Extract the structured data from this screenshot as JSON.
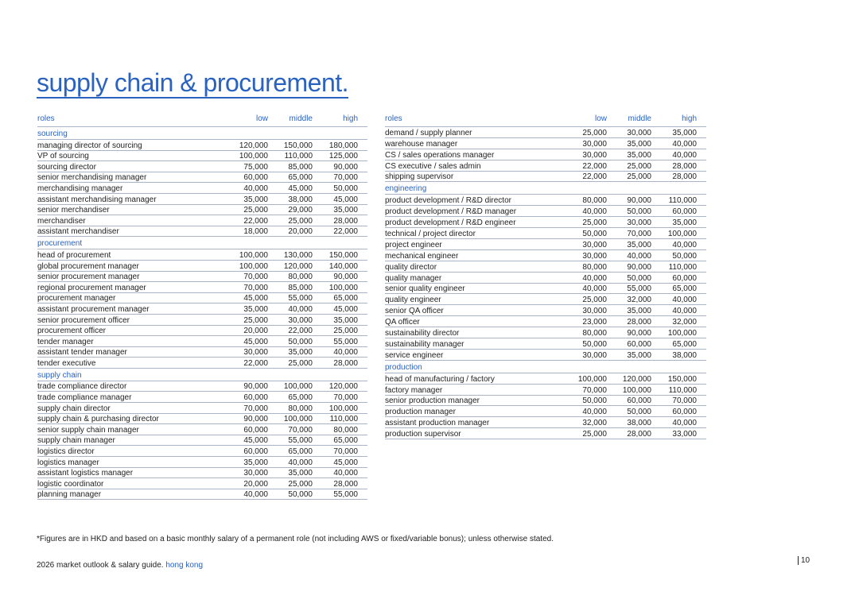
{
  "header": {
    "title": "supply chain & procurement."
  },
  "left_table": {
    "columns": [
      "roles",
      "low",
      "middle",
      "high"
    ],
    "sections": [
      {
        "label": "sourcing",
        "rows": [
          [
            "managing director of sourcing",
            "120,000",
            "150,000",
            "180,000"
          ],
          [
            "VP of sourcing",
            "100,000",
            "110,000",
            "125,000"
          ],
          [
            "sourcing director",
            "75,000",
            "85,000",
            "90,000"
          ],
          [
            "senior merchandising manager",
            "60,000",
            "65,000",
            "70,000"
          ],
          [
            "merchandising manager",
            "40,000",
            "45,000",
            "50,000"
          ],
          [
            "assistant merchandising manager",
            "35,000",
            "38,000",
            "45,000"
          ],
          [
            "senior merchandiser",
            "25,000",
            "29,000",
            "35,000"
          ],
          [
            "merchandiser",
            "22,000",
            "25,000",
            "28,000"
          ],
          [
            "assistant merchandiser",
            "18,000",
            "20,000",
            "22,000"
          ]
        ]
      },
      {
        "label": "procurement",
        "rows": [
          [
            "head of procurement",
            "100,000",
            "130,000",
            "150,000"
          ],
          [
            "global procurement manager",
            "100,000",
            "120,000",
            "140,000"
          ],
          [
            "senior procurement manager",
            "70,000",
            "80,000",
            "90,000"
          ],
          [
            "regional procurement manager",
            "70,000",
            "85,000",
            "100,000"
          ],
          [
            "procurement manager",
            "45,000",
            "55,000",
            "65,000"
          ],
          [
            "assistant procurement manager",
            "35,000",
            "40,000",
            "45,000"
          ],
          [
            "senior procurement officer",
            "25,000",
            "30,000",
            "35,000"
          ],
          [
            "procurement officer",
            "20,000",
            "22,000",
            "25,000"
          ],
          [
            "tender manager",
            "45,000",
            "50,000",
            "55,000"
          ],
          [
            "assistant tender manager",
            "30,000",
            "35,000",
            "40,000"
          ],
          [
            "tender executive",
            "22,000",
            "25,000",
            "28,000"
          ]
        ]
      },
      {
        "label": "supply chain",
        "rows": [
          [
            "trade compliance director",
            "90,000",
            "100,000",
            "120,000"
          ],
          [
            "trade compliance manager",
            "60,000",
            "65,000",
            "70,000"
          ],
          [
            "supply chain director",
            "70,000",
            "80,000",
            "100,000"
          ],
          [
            "supply chain & purchasing director",
            "90,000",
            "100,000",
            "110,000"
          ],
          [
            "senior supply chain manager",
            "60,000",
            "70,000",
            "80,000"
          ],
          [
            "supply chain manager",
            "45,000",
            "55,000",
            "65,000"
          ],
          [
            "logistics director",
            "60,000",
            "65,000",
            "70,000"
          ],
          [
            "logistics manager",
            "35,000",
            "40,000",
            "45,000"
          ],
          [
            "assistant logistics manager",
            "30,000",
            "35,000",
            "40,000"
          ],
          [
            "logistic coordinator",
            "20,000",
            "25,000",
            "28,000"
          ],
          [
            "planning manager",
            "40,000",
            "50,000",
            "55,000"
          ]
        ]
      }
    ]
  },
  "right_table": {
    "columns": [
      "roles",
      "low",
      "middle",
      "high"
    ],
    "sections": [
      {
        "rows": [
          [
            "demand / supply planner",
            "25,000",
            "30,000",
            "35,000"
          ],
          [
            "warehouse manager",
            "30,000",
            "35,000",
            "40,000"
          ],
          [
            "CS / sales operations manager",
            "30,000",
            "35,000",
            "40,000"
          ],
          [
            "CS executive / sales admin",
            "22,000",
            "25,000",
            "28,000"
          ],
          [
            "shipping supervisor",
            "22,000",
            "25,000",
            "28,000"
          ]
        ]
      },
      {
        "label": "engineering",
        "rows": [
          [
            "product development / R&D director",
            "80,000",
            "90,000",
            "110,000"
          ],
          [
            "product development / R&D manager",
            "40,000",
            "50,000",
            "60,000"
          ],
          [
            "product development / R&D engineer",
            "25,000",
            "30,000",
            "35,000"
          ],
          [
            "technical / project director",
            "50,000",
            "70,000",
            "100,000"
          ],
          [
            "project engineer",
            "30,000",
            "35,000",
            "40,000"
          ],
          [
            "mechanical engineer",
            "30,000",
            "40,000",
            "50,000"
          ],
          [
            "quality director",
            "80,000",
            "90,000",
            "110,000"
          ],
          [
            "quality manager",
            "40,000",
            "50,000",
            "60,000"
          ],
          [
            "senior quality engineer",
            "40,000",
            "55,000",
            "65,000"
          ],
          [
            "quality engineer",
            "25,000",
            "32,000",
            "40,000"
          ],
          [
            "senior QA officer",
            "30,000",
            "35,000",
            "40,000"
          ],
          [
            "QA officer",
            "23,000",
            "28,000",
            "32,000"
          ],
          [
            "sustainability director",
            "80,000",
            "90,000",
            "100,000"
          ],
          [
            "sustainability manager",
            "50,000",
            "60,000",
            "65,000"
          ],
          [
            "service engineer",
            "30,000",
            "35,000",
            "38,000"
          ]
        ]
      },
      {
        "label": "production",
        "rows": [
          [
            "head of manufacturing / factory",
            "100,000",
            "120,000",
            "150,000"
          ],
          [
            "factory manager",
            "70,000",
            "100,000",
            "110,000"
          ],
          [
            "senior production manager",
            "50,000",
            "60,000",
            "70,000"
          ],
          [
            "production manager",
            "40,000",
            "50,000",
            "60,000"
          ],
          [
            "assistant production manager",
            "32,000",
            "38,000",
            "40,000"
          ],
          [
            "production supervisor",
            "25,000",
            "28,000",
            "33,000"
          ]
        ]
      }
    ]
  },
  "footnote": "*Figures are in HKD and based on a basic monthly salary of a permanent role (not including AWS or fixed/variable bonus); unless otherwise stated.",
  "footer": {
    "text": "2026 market outlook & salary guide.",
    "highlight": "hong kong",
    "page": "10"
  }
}
